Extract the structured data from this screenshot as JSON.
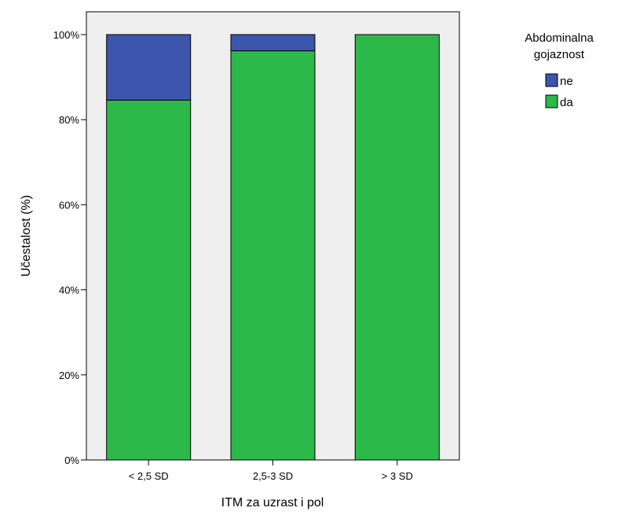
{
  "chart_data": {
    "type": "bar",
    "stacked": true,
    "percent": true,
    "categories": [
      "< 2,5 SD",
      "2,5-3 SD",
      "> 3 SD"
    ],
    "series": [
      {
        "name": "da",
        "values": [
          84.6,
          96.2,
          100.0
        ],
        "color": "#2db84a"
      },
      {
        "name": "ne",
        "values": [
          15.4,
          3.8,
          0.0
        ],
        "color": "#3c56ad"
      }
    ],
    "xlabel": "ITM za uzrast i pol",
    "ylabel": "Učestalost (%)",
    "ylim": [
      0,
      100
    ],
    "yticks": [
      0,
      20,
      40,
      60,
      80,
      100
    ],
    "ytick_labels": [
      "0%",
      "20%",
      "40%",
      "60%",
      "80%",
      "100%"
    ],
    "legend": {
      "title_lines": [
        "Abdominalna",
        "gojaznost"
      ],
      "entries": [
        "ne",
        "da"
      ],
      "placement": "top-right outside plot"
    },
    "grid": false,
    "plot_background": "#efefef"
  }
}
